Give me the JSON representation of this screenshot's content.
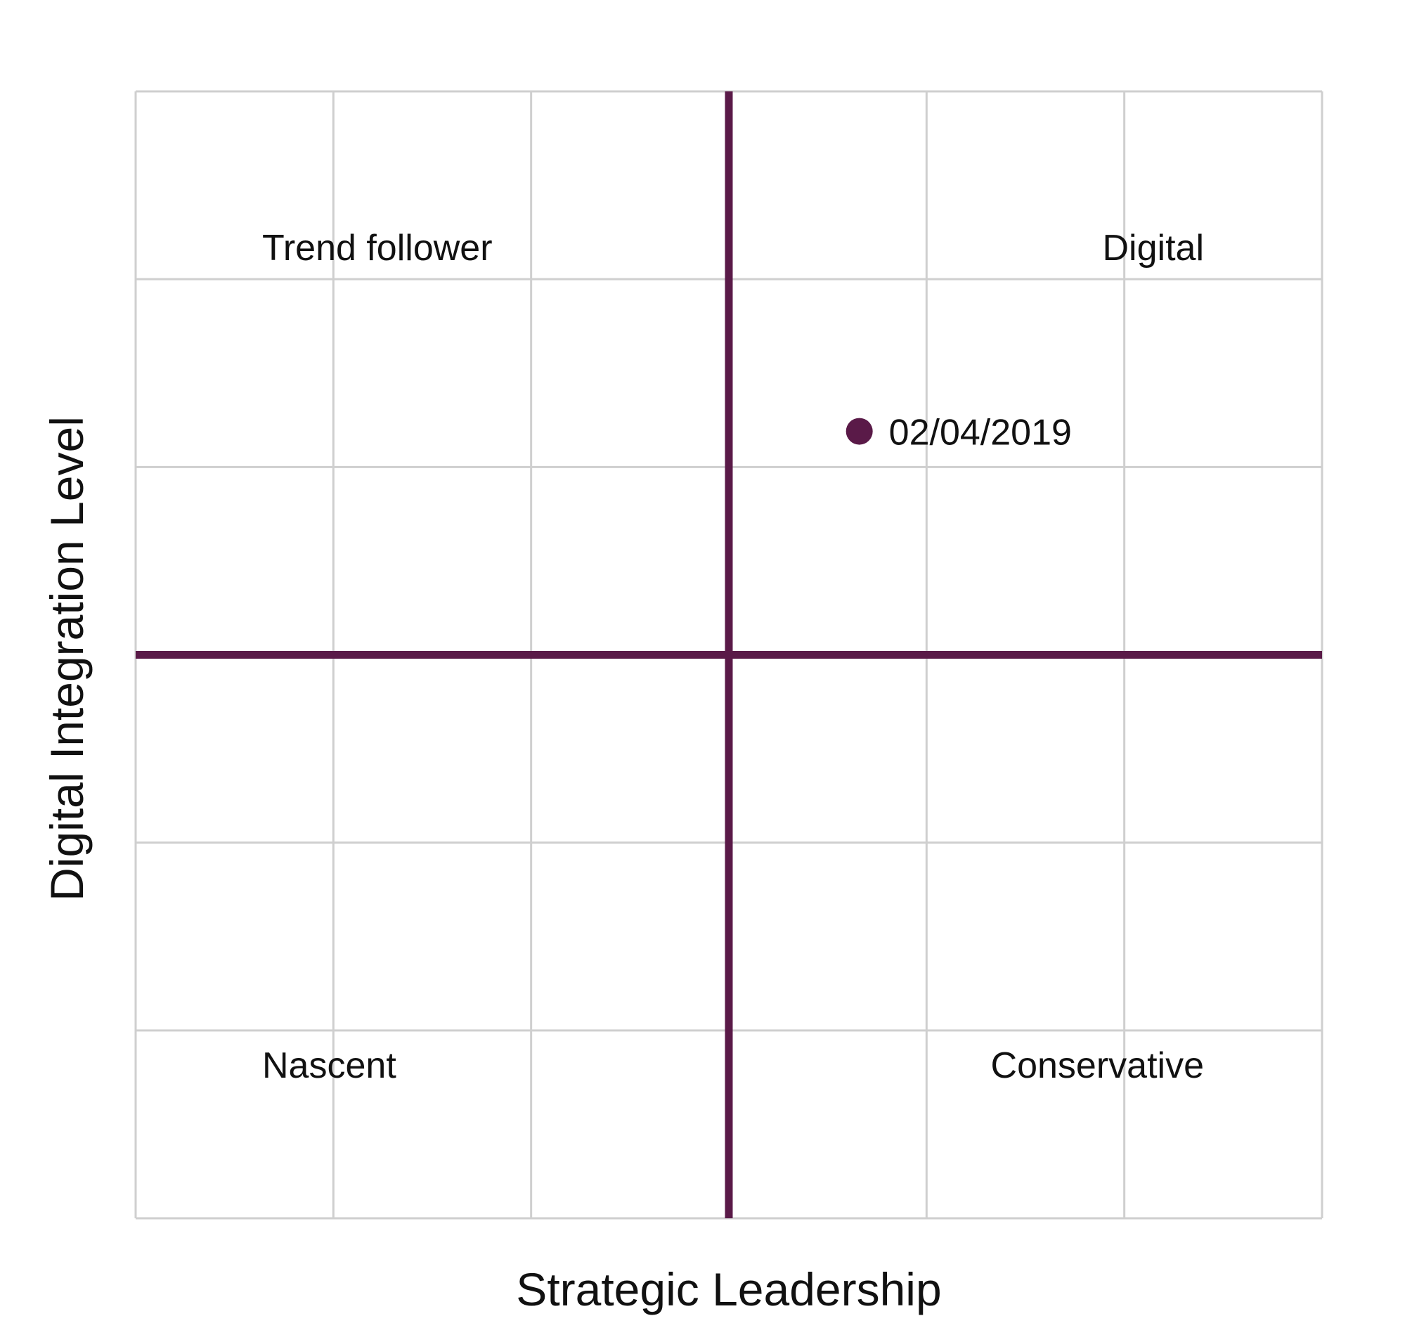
{
  "colors": {
    "accent": "#5a1a48",
    "grid": "#cfcfcf",
    "text": "#111111",
    "background": "#ffffff"
  },
  "chart_data": {
    "type": "scatter",
    "title": "",
    "xlabel": "Strategic Leadership",
    "ylabel": "Digital Integration Level",
    "xlim": [
      0,
      6
    ],
    "ylim": [
      0,
      6
    ],
    "grid": true,
    "x_divider": 3,
    "y_divider": 3,
    "quadrants": {
      "top_left": "Trend follower",
      "top_right": "Digital",
      "bottom_left": "Nascent",
      "bottom_right": "Conservative"
    },
    "points": [
      {
        "x": 3.66,
        "y": 4.19,
        "label": "02/04/2019"
      }
    ]
  }
}
